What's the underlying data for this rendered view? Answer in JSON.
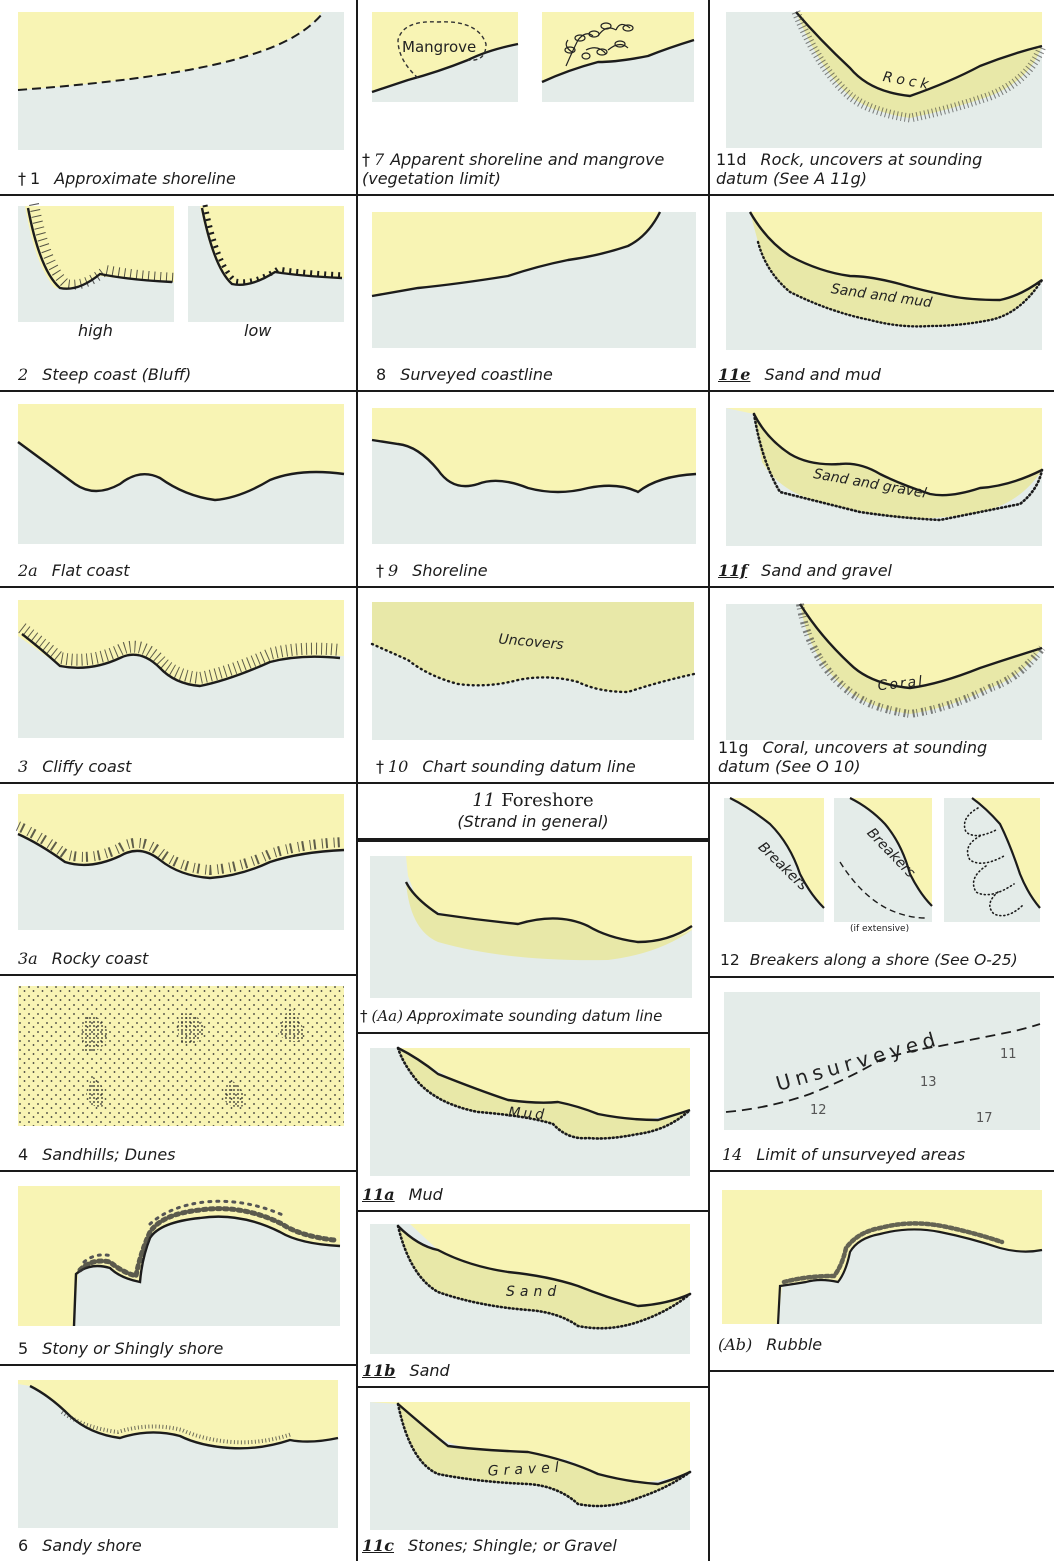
{
  "colors": {
    "land": "#f8f4b4",
    "water": "#e4ece9",
    "foreshore": "#e8e8a8",
    "ink": "#1c1c1c"
  },
  "col1": {
    "c1": {
      "dagger": "†",
      "num": "1",
      "caption": "Approximate shoreline"
    },
    "c2": {
      "num": "2",
      "caption": "Steep coast (Bluff)",
      "high": "high",
      "low": "low"
    },
    "c2a": {
      "num": "2a",
      "caption": "Flat coast"
    },
    "c3": {
      "num": "3",
      "caption": "Cliffy coast"
    },
    "c3a": {
      "num": "3a",
      "caption": "Rocky coast"
    },
    "c4": {
      "num": "4",
      "caption": "Sandhills; Dunes"
    },
    "c5": {
      "num": "5",
      "caption": "Stony or Shingly shore"
    },
    "c6": {
      "num": "6",
      "caption": "Sandy shore"
    }
  },
  "col2": {
    "c7": {
      "dagger": "†",
      "num": "7",
      "caption": "Apparent shoreline and mangrove\n(vegetation limit)",
      "mangrove": "Mangrove"
    },
    "c8": {
      "num": "8",
      "caption": "Surveyed coastline"
    },
    "c9": {
      "dagger": "†",
      "num": "9",
      "caption": "Shoreline"
    },
    "c10": {
      "dagger": "†",
      "num": "10",
      "caption": "Chart sounding datum line",
      "label": "Uncovers"
    },
    "c11": {
      "num": "11",
      "title": "Foreshore",
      "subtitle": "(Strand in general)"
    },
    "cAa": {
      "dagger": "†",
      "num": "(Aa)",
      "caption": "Approximate sounding datum line"
    },
    "c11a": {
      "num": "11a",
      "caption": "Mud",
      "label": "Mud"
    },
    "c11b": {
      "num": "11b",
      "caption": "Sand",
      "label": "Sand"
    },
    "c11c": {
      "num": "11c",
      "caption": "Stones; Shingle; or Gravel",
      "label": "Gravel"
    }
  },
  "col3": {
    "c11d": {
      "num": "11d",
      "caption": "Rock, uncovers at sounding\ndatum (See A 11g)",
      "label": "Rock"
    },
    "c11e": {
      "num": "11e",
      "caption": "Sand and mud",
      "label": "Sand and mud"
    },
    "c11f": {
      "num": "11f",
      "caption": "Sand and gravel",
      "label": "Sand and gravel"
    },
    "c11g": {
      "num": "11g",
      "caption": "Coral, uncovers at sounding\ndatum (See O 10)",
      "label": "Coral"
    },
    "c12": {
      "num": "12",
      "caption": "Breakers along a shore (See O-25)",
      "label1": "Breakers",
      "label2": "Breakers",
      "note": "(if extensive)"
    },
    "c14": {
      "num": "14",
      "caption": "Limit of unsurveyed areas",
      "label": "Unsurveyed",
      "soundings": [
        "11",
        "13",
        "12",
        "17"
      ]
    },
    "cAb": {
      "num": "(Ab)",
      "caption": "Rubble"
    }
  }
}
